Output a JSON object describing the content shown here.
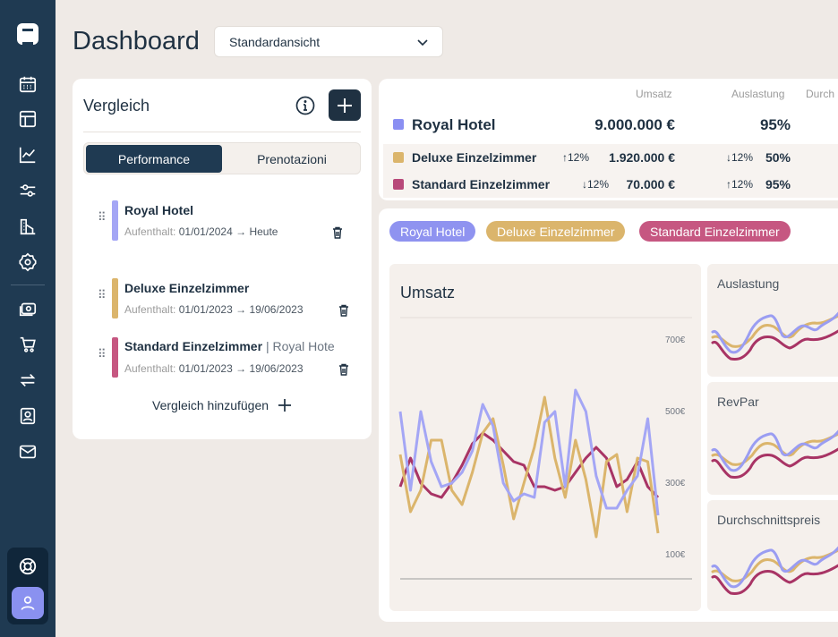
{
  "page_title": "Dashboard",
  "view_select": {
    "value": "Standardansicht"
  },
  "comparison": {
    "title": "Vergleich",
    "tabs": [
      "Performance",
      "Prenotazioni"
    ],
    "primary": {
      "name": "Royal Hotel",
      "stay_label": "Aufenthalt:",
      "stay_range": "01/01/2024 → Heute",
      "color": "#a4a6f5"
    },
    "items": [
      {
        "name": "Deluxe Einzelzimmer",
        "extra": "",
        "stay_label": "Aufenthalt:",
        "stay_range": "01/01/2023 → 19/06/2023",
        "color": "#dbb56c"
      },
      {
        "name": "Standard Einzelzimmer",
        "extra": "| Royal Hote",
        "stay_label": "Aufenthalt:",
        "stay_range": "01/01/2023 → 19/06/2023",
        "color": "#c65781"
      }
    ],
    "add_label": "Vergleich hinzufügen"
  },
  "kpi": {
    "headers": [
      "Umsatz",
      "Auslastung",
      "Durch"
    ],
    "primary": {
      "name": "Royal Hotel",
      "umsatz": "9.000.000 €",
      "auslastung": "95%",
      "color": "#8a8ff2"
    },
    "rows": [
      {
        "name": "Deluxe Einzelzimmer",
        "umsatz_delta": "↑12%",
        "umsatz": "1.920.000 €",
        "auslastung_delta": "↓12%",
        "auslastung": "50%",
        "color": "#dbb56c"
      },
      {
        "name": "Standard Einzelzimmer",
        "umsatz_delta": "↓12%",
        "umsatz": "70.000 €",
        "auslastung_delta": "↑12%",
        "auslastung": "95%",
        "color": "#b8497a"
      }
    ]
  },
  "legend_pills": [
    {
      "label": "Royal Hotel",
      "color": "#8f93f0"
    },
    {
      "label": "Deluxe Einzelzimmer",
      "color": "#dbb56c"
    },
    {
      "label": "Standard Einzelzimmer",
      "color": "#c65781"
    }
  ],
  "mini_titles": [
    "Auslastung",
    "RevPar",
    "Durchschnittspreis"
  ],
  "chart_data": {
    "type": "line",
    "title": "Umsatz",
    "y_ticks": [
      "700€",
      "500€",
      "300€",
      "100€"
    ],
    "ylim": [
      0,
      800
    ],
    "x": [
      1,
      2,
      3,
      4,
      5,
      6,
      7,
      8,
      9,
      10,
      11,
      12,
      13,
      14,
      15,
      16,
      17,
      18,
      19,
      20,
      21,
      22,
      23,
      24,
      25,
      26
    ],
    "series": [
      {
        "name": "Royal Hotel",
        "color": "#a4a6f5",
        "values": [
          500,
          280,
          500,
          360,
          290,
          300,
          330,
          390,
          520,
          460,
          300,
          250,
          270,
          260,
          470,
          500,
          290,
          560,
          500,
          320,
          230,
          230,
          280,
          320,
          480,
          210
        ]
      },
      {
        "name": "Deluxe Einzelzimmer",
        "color": "#dbb56c",
        "values": [
          380,
          220,
          280,
          420,
          420,
          280,
          240,
          330,
          440,
          480,
          350,
          200,
          300,
          400,
          540,
          370,
          260,
          420,
          310,
          150,
          360,
          380,
          220,
          370,
          360,
          160
        ]
      },
      {
        "name": "Standard Einzelzimmer",
        "color": "#a83465",
        "values": [
          290,
          370,
          300,
          270,
          260,
          300,
          350,
          410,
          440,
          420,
          390,
          360,
          350,
          290,
          290,
          280,
          290,
          330,
          370,
          400,
          370,
          290,
          310,
          360,
          290,
          260
        ]
      }
    ]
  }
}
